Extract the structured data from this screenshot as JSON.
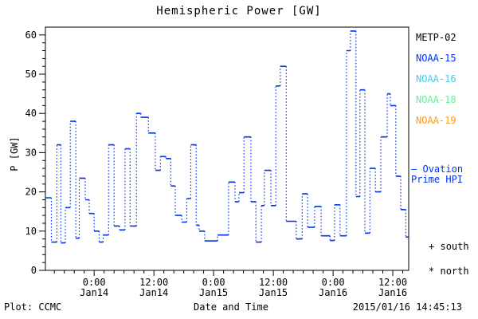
{
  "title": "Hemispheric Power [GW]",
  "ylabel": "P [GW]",
  "xlabel": "Date and Time",
  "footer": {
    "left": "Plot: CCMC",
    "timestamp": "2015/01/16 14:45:13"
  },
  "legend": {
    "satellites": [
      {
        "label": "METP-02",
        "color": "#000000"
      },
      {
        "label": "NOAA-15",
        "color": "#0033ff"
      },
      {
        "label": "NOAA-16",
        "color": "#44ccee"
      },
      {
        "label": "NOAA-18",
        "color": "#66ee99"
      },
      {
        "label": "NOAA-19",
        "color": "#ff9911"
      }
    ],
    "ovation": {
      "marker": "—",
      "line1": "Ovation",
      "line2": "Prime HPI",
      "color": "#0033ee"
    },
    "hemisphere_markers": [
      {
        "marker": "+",
        "label": "south"
      },
      {
        "marker": "*",
        "label": "north"
      }
    ]
  },
  "chart_data": {
    "type": "line",
    "subtype": "step-series with dotted connectors",
    "series_name": "Ovation Prime HPI",
    "line_color": "#0033ee",
    "x_unit": "hours since 2015-01-14 00:00",
    "xlim": [
      -9.8,
      63.2
    ],
    "ylim": [
      0,
      62
    ],
    "y_ticks": [
      0,
      10,
      20,
      30,
      40,
      50,
      60
    ],
    "y_minor_step": 2,
    "x_minor_step": 2,
    "x_tick_labels": [
      {
        "t": 0,
        "time": "0:00",
        "date": "Jan14"
      },
      {
        "t": 12,
        "time": "12:00",
        "date": "Jan14"
      },
      {
        "t": 24,
        "time": "0:00",
        "date": "Jan15"
      },
      {
        "t": 36,
        "time": "12:00",
        "date": "Jan15"
      },
      {
        "t": 48,
        "time": "0:00",
        "date": "Jan16"
      },
      {
        "t": 60,
        "time": "12:00",
        "date": "Jan16"
      }
    ],
    "segments": [
      [
        -9.8,
        -8.6,
        18.5
      ],
      [
        -8.6,
        -7.5,
        7.2
      ],
      [
        -7.5,
        -6.7,
        32
      ],
      [
        -6.7,
        -5.8,
        7
      ],
      [
        -5.8,
        -4.8,
        16
      ],
      [
        -4.8,
        -3.7,
        38
      ],
      [
        -3.7,
        -3.0,
        8.2
      ],
      [
        -3.0,
        -1.8,
        23.5
      ],
      [
        -1.8,
        -1.0,
        18
      ],
      [
        -1.0,
        0.0,
        14.5
      ],
      [
        0.0,
        1.0,
        10
      ],
      [
        1.0,
        1.8,
        7.2
      ],
      [
        1.8,
        2.9,
        9
      ],
      [
        2.9,
        4.0,
        32
      ],
      [
        4.0,
        5.1,
        11.3
      ],
      [
        5.1,
        6.2,
        10.3
      ],
      [
        6.2,
        7.2,
        31
      ],
      [
        7.2,
        8.5,
        11.3
      ],
      [
        8.5,
        9.4,
        40
      ],
      [
        9.4,
        10.9,
        39
      ],
      [
        10.9,
        12.3,
        35
      ],
      [
        12.3,
        13.3,
        25.5
      ],
      [
        13.3,
        14.4,
        29
      ],
      [
        14.4,
        15.4,
        28.5
      ],
      [
        15.4,
        16.3,
        21.5
      ],
      [
        16.3,
        17.6,
        14
      ],
      [
        17.6,
        18.6,
        12.3
      ],
      [
        18.6,
        19.4,
        18.3
      ],
      [
        19.4,
        20.5,
        32
      ],
      [
        20.5,
        21.1,
        11.5
      ],
      [
        21.1,
        22.2,
        10
      ],
      [
        22.2,
        24.8,
        7.5
      ],
      [
        24.8,
        27.0,
        9
      ],
      [
        27.0,
        28.3,
        22.5
      ],
      [
        28.3,
        29.1,
        17.5
      ],
      [
        29.1,
        30.1,
        19.8
      ],
      [
        30.1,
        31.5,
        34
      ],
      [
        31.5,
        32.5,
        17.5
      ],
      [
        32.5,
        33.6,
        7.2
      ],
      [
        33.6,
        34.2,
        16.5
      ],
      [
        34.2,
        35.5,
        25.5
      ],
      [
        35.5,
        36.5,
        16.5
      ],
      [
        36.5,
        37.4,
        47
      ],
      [
        37.4,
        38.6,
        52
      ],
      [
        38.6,
        40.6,
        12.5
      ],
      [
        40.6,
        41.8,
        8
      ],
      [
        41.8,
        42.9,
        19.5
      ],
      [
        42.9,
        44.3,
        11
      ],
      [
        44.3,
        45.6,
        16.3
      ],
      [
        45.6,
        47.4,
        8.8
      ],
      [
        47.4,
        48.3,
        7.6
      ],
      [
        48.3,
        49.4,
        16.7
      ],
      [
        49.4,
        50.7,
        8.8
      ],
      [
        50.7,
        51.5,
        56
      ],
      [
        51.5,
        52.6,
        61
      ],
      [
        52.6,
        53.4,
        18.8
      ],
      [
        53.4,
        54.4,
        46
      ],
      [
        54.4,
        55.4,
        9.5
      ],
      [
        55.4,
        56.5,
        26
      ],
      [
        56.5,
        57.6,
        20
      ],
      [
        57.6,
        58.9,
        34
      ],
      [
        58.9,
        59.5,
        45
      ],
      [
        59.5,
        60.6,
        42
      ],
      [
        60.6,
        61.6,
        24
      ],
      [
        61.6,
        62.6,
        15.5
      ],
      [
        62.6,
        63.2,
        8.5
      ]
    ]
  }
}
